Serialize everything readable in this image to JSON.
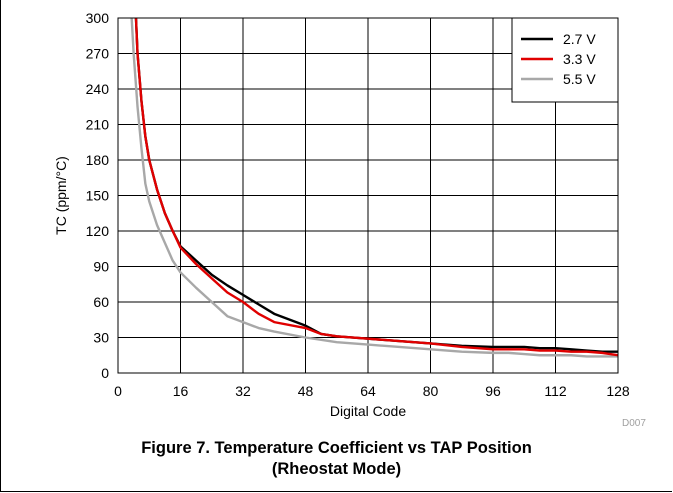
{
  "chart_data": {
    "type": "line",
    "xlabel": "Digital Code",
    "ylabel": "TC (ppm/°C)",
    "xlim": [
      0,
      128
    ],
    "ylim": [
      0,
      300
    ],
    "xticks": [
      0,
      16,
      32,
      48,
      64,
      80,
      96,
      112,
      128
    ],
    "yticks": [
      0,
      30,
      60,
      90,
      120,
      150,
      180,
      210,
      240,
      270,
      300
    ],
    "grid": true,
    "legend_position": "top-right",
    "series": [
      {
        "name": "2.7 V",
        "color": "#000000",
        "x": [
          4.6,
          5,
          6,
          7,
          8,
          10,
          12,
          14,
          16,
          20,
          24,
          28,
          32,
          36,
          40,
          48,
          52,
          56,
          64,
          72,
          80,
          88,
          96,
          100,
          104,
          108,
          112,
          116,
          120,
          124,
          128
        ],
        "y": [
          300,
          270,
          230,
          200,
          180,
          155,
          135,
          120,
          107,
          95,
          83,
          74,
          66,
          58,
          50,
          40,
          33,
          31,
          29,
          27,
          25,
          23,
          22,
          22,
          22,
          21,
          21,
          20,
          19,
          18,
          18
        ]
      },
      {
        "name": "3.3 V",
        "color": "#e00000",
        "x": [
          4.6,
          5,
          6,
          7,
          8,
          10,
          12,
          14,
          16,
          20,
          24,
          28,
          32,
          36,
          40,
          48,
          52,
          56,
          64,
          72,
          80,
          88,
          96,
          100,
          104,
          108,
          112,
          116,
          120,
          124,
          128
        ],
        "y": [
          300,
          270,
          230,
          200,
          180,
          155,
          135,
          120,
          106,
          92,
          80,
          68,
          60,
          50,
          43,
          38,
          33,
          31,
          29,
          27,
          25,
          22,
          20,
          20,
          20,
          19,
          19,
          18,
          18,
          17,
          15
        ]
      },
      {
        "name": "5.5 V",
        "color": "#a8a8a8",
        "x": [
          3.5,
          4,
          5,
          6,
          7,
          8,
          10,
          12,
          14,
          16,
          20,
          24,
          28,
          32,
          36,
          40,
          48,
          52,
          56,
          64,
          72,
          80,
          88,
          96,
          100,
          104,
          108,
          112,
          116,
          120,
          124,
          128
        ],
        "y": [
          300,
          270,
          225,
          190,
          160,
          145,
          125,
          110,
          95,
          85,
          72,
          60,
          48,
          43,
          38,
          35,
          30,
          28,
          26,
          24,
          22,
          20,
          18,
          17,
          17,
          16,
          15,
          15,
          15,
          14,
          14,
          14
        ]
      }
    ]
  },
  "watermark": "D007",
  "caption": {
    "line1": "Figure 7. Temperature Coefficient vs TAP Position",
    "line2": "(Rheostat Mode)"
  }
}
